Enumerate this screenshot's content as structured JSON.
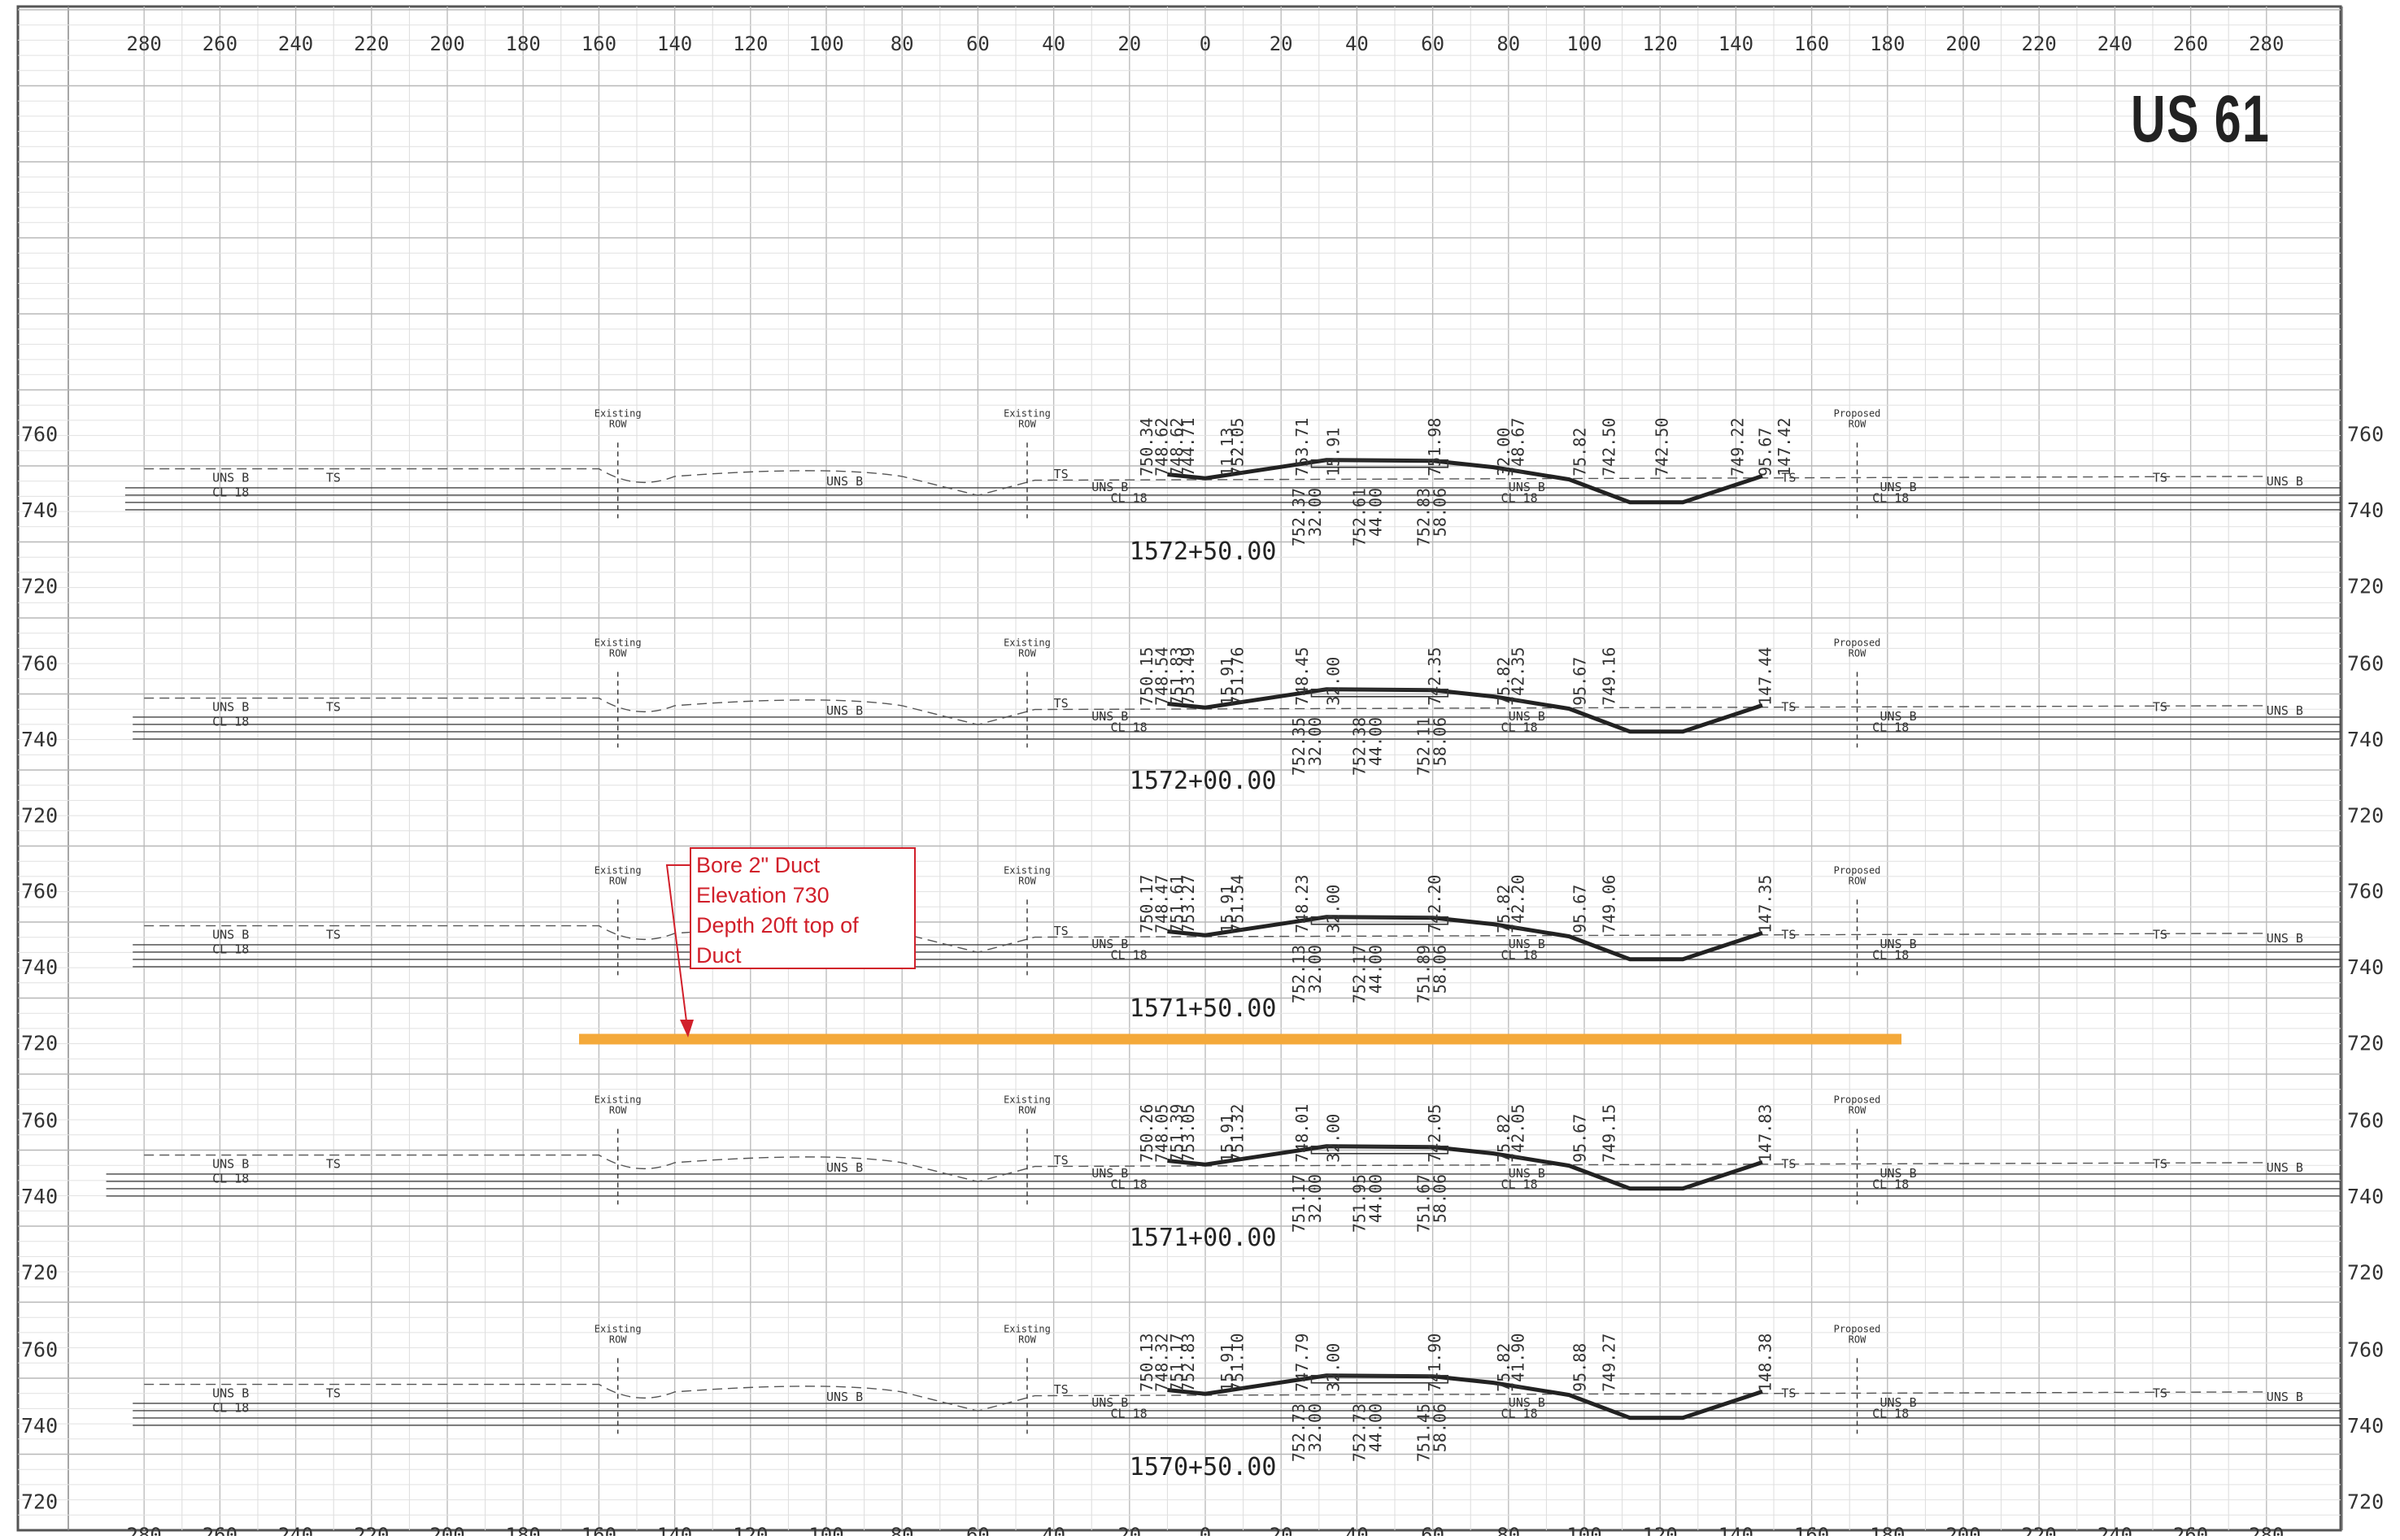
{
  "sheet": {
    "title": "US 61",
    "top_offsets": [
      "280",
      "260",
      "240",
      "220",
      "200",
      "180",
      "160",
      "140",
      "120",
      "100",
      "80",
      "60",
      "40",
      "20",
      "0",
      "20",
      "40",
      "60",
      "80",
      "100",
      "120",
      "140",
      "160",
      "180",
      "200",
      "220",
      "240",
      "260",
      "280"
    ],
    "bottom_offsets": [
      "280",
      "260",
      "240",
      "220",
      "200",
      "180",
      "160",
      "140",
      "120",
      "100",
      "80",
      "60",
      "40",
      "20",
      "0",
      "20",
      "40",
      "60",
      "80",
      "100",
      "120",
      "140",
      "160",
      "180",
      "200",
      "220",
      "240",
      "260",
      "280"
    ],
    "elevation_labels": [
      "760",
      "740",
      "720"
    ]
  },
  "annotation": {
    "lines": [
      "Bore 2\" Duct",
      "Elevation 730",
      "Depth 20ft top of",
      "Duct"
    ],
    "bore_color": "#f4a93a",
    "callout_color": "#d11f2a"
  },
  "cross_sections": [
    {
      "station": "1572+50.00",
      "labels": {
        "existing_row_left": "Existing\nROW",
        "existing_row_right": "Existing\nROW",
        "proposed_row": "Proposed\nROW"
      },
      "elevations_top": [
        "750.34",
        "748.62",
        "748.62",
        "744.71",
        "752.05",
        "753.71",
        "751.98",
        "748.67",
        "742.50",
        "742.50",
        "749.22"
      ],
      "offsets_top": [
        "11.13",
        "15.91",
        "32.00",
        "75.82",
        "95.67",
        "147.42"
      ],
      "elevations_bottom": [
        "752.37",
        "752.61",
        "752.83"
      ],
      "offsets_bottom": [
        "32.00",
        "44.00",
        "58.06"
      ],
      "soil_labels": [
        "UNS B",
        "TS",
        "CL 18"
      ]
    },
    {
      "station": "1572+00.00",
      "labels": {
        "existing_row_left": "Existing\nROW",
        "existing_row_right": "Existing\nROW",
        "proposed_row": "Proposed\nROW"
      },
      "elevations_top": [
        "750.15",
        "748.54",
        "751.83",
        "753.49",
        "751.76",
        "748.45",
        "742.35",
        "742.35",
        "749.16"
      ],
      "offsets_top": [
        "15.91",
        "32.00",
        "75.82",
        "95.67",
        "147.44"
      ],
      "elevations_bottom": [
        "752.35",
        "752.38",
        "752.11"
      ],
      "offsets_bottom": [
        "32.00",
        "44.00",
        "58.06"
      ],
      "soil_labels": [
        "UNS B",
        "TS",
        "CL 18"
      ]
    },
    {
      "station": "1571+50.00",
      "labels": {
        "existing_row_left": "Existing\nROW",
        "existing_row_right": "Existing\nROW",
        "proposed_row": "Proposed\nROW"
      },
      "elevations_top": [
        "750.17",
        "748.47",
        "751.61",
        "753.27",
        "751.54",
        "748.23",
        "742.20",
        "742.20",
        "749.06"
      ],
      "offsets_top": [
        "15.91",
        "32.00",
        "75.82",
        "95.67",
        "147.35"
      ],
      "elevations_bottom": [
        "752.13",
        "752.17",
        "751.89"
      ],
      "offsets_bottom": [
        "32.00",
        "44.00",
        "58.06"
      ],
      "soil_labels": [
        "UNS B",
        "TS",
        "CL 18"
      ]
    },
    {
      "station": "1571+00.00",
      "labels": {
        "existing_row_left": "Existing\nROW",
        "existing_row_right": "Existing\nROW",
        "proposed_row": "Proposed\nROW"
      },
      "elevations_top": [
        "750.26",
        "748.05",
        "751.39",
        "753.05",
        "751.32",
        "748.01",
        "742.05",
        "742.05",
        "749.15"
      ],
      "offsets_top": [
        "15.91",
        "32.00",
        "75.82",
        "95.67",
        "147.83"
      ],
      "elevations_bottom": [
        "751.17",
        "751.95",
        "751.67"
      ],
      "offsets_bottom": [
        "32.00",
        "44.00",
        "58.06"
      ],
      "soil_labels": [
        "UNS B",
        "TS",
        "CL 18"
      ]
    },
    {
      "station": "1570+50.00",
      "labels": {
        "existing_row_left": "Existing\nROW",
        "existing_row_right": "Existing\nROW",
        "proposed_row": "Proposed\nROW"
      },
      "elevations_top": [
        "750.13",
        "748.32",
        "751.17",
        "752.83",
        "751.10",
        "747.79",
        "741.90",
        "741.90",
        "749.27"
      ],
      "offsets_top": [
        "15.91",
        "32.00",
        "75.82",
        "95.88",
        "148.38"
      ],
      "elevations_bottom": [
        "752.73",
        "752.73",
        "751.45"
      ],
      "offsets_bottom": [
        "32.00",
        "44.00",
        "58.06"
      ],
      "soil_labels": [
        "UNS B",
        "TS",
        "CL 18"
      ]
    }
  ]
}
